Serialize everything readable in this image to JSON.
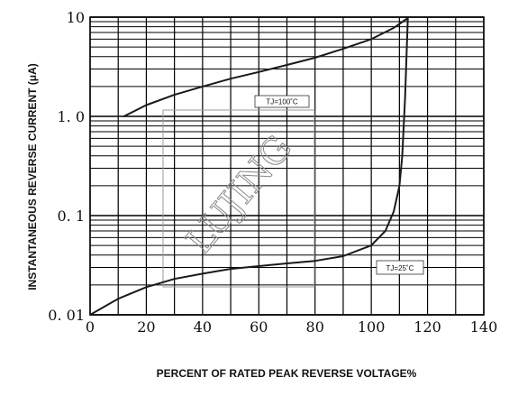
{
  "chart_data": {
    "type": "line",
    "title": "",
    "xlabel": "PERCENT OF RATED PEAK REVERSE VOLTAGE%",
    "ylabel": "INSTANTANEOUS REVERSE CURRENT  (μA)",
    "xlim": [
      0,
      140
    ],
    "ylim": [
      0.01,
      10
    ],
    "yscale": "log",
    "grid": true,
    "x_ticks": [
      "0",
      "20",
      "40",
      "60",
      "80",
      "100",
      "120",
      "140"
    ],
    "y_ticks": [
      "10",
      "1. 0",
      "0. 1",
      "0. 01"
    ],
    "series": [
      {
        "name": "TJ=100°C",
        "x": [
          12,
          20,
          30,
          40,
          50,
          60,
          70,
          80,
          90,
          100,
          108,
          113
        ],
        "y": [
          1.0,
          1.3,
          1.65,
          2.0,
          2.4,
          2.8,
          3.3,
          3.9,
          4.8,
          6.0,
          7.8,
          9.8
        ]
      },
      {
        "name": "TJ=25°C",
        "x": [
          0,
          10,
          20,
          30,
          40,
          50,
          60,
          70,
          80,
          90,
          100,
          105,
          108,
          110,
          111,
          112,
          113
        ],
        "y": [
          0.01,
          0.0145,
          0.019,
          0.023,
          0.026,
          0.029,
          0.031,
          0.033,
          0.035,
          0.039,
          0.05,
          0.07,
          0.11,
          0.2,
          0.4,
          1.5,
          9.8
        ]
      }
    ],
    "annotations": [
      "TJ=100˚C",
      "TJ=25˚C"
    ],
    "watermark": "LUJING"
  }
}
